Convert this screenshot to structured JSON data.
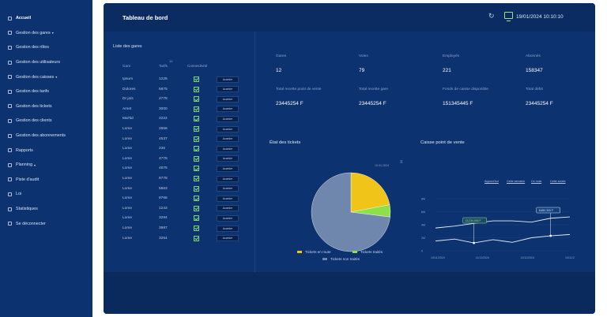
{
  "sidebar": {
    "items": [
      {
        "label": "Accueil",
        "caret": ""
      },
      {
        "label": "Gestion des gares",
        "caret": "▾"
      },
      {
        "label": "Gestion des rôles",
        "caret": ""
      },
      {
        "label": "Gestion des utilisateurs",
        "caret": ""
      },
      {
        "label": "Gestion des caisses",
        "caret": "▾"
      },
      {
        "label": "Gestion des tarifs",
        "caret": ""
      },
      {
        "label": "Gestion des tickets",
        "caret": ""
      },
      {
        "label": "Gestion des clients",
        "caret": ""
      },
      {
        "label": "Gestion des abonnements",
        "caret": ""
      },
      {
        "label": "Rapports",
        "caret": ""
      },
      {
        "label": "Planning",
        "caret": "▾"
      },
      {
        "label": "Piste d'audit",
        "caret": ""
      },
      {
        "label": "Loi",
        "caret": ""
      },
      {
        "label": "Statistiques",
        "caret": ""
      },
      {
        "label": "Se déconnecter",
        "caret": ""
      }
    ]
  },
  "header": {
    "title": "Tableau de bord",
    "datetime": "19/01/2024 10:10:10",
    "refresh_icon": "↻"
  },
  "gares": {
    "title": "Liste des gares",
    "columns": [
      "Gare",
      "Tarifs",
      "Connectivité"
    ],
    "notif": "10",
    "button_label": "Accéder",
    "rows": [
      {
        "name": "Ipsum",
        "tarif": "1225"
      },
      {
        "name": "Dolores",
        "tarif": "5875"
      },
      {
        "name": "Dr jois",
        "tarif": "2778"
      },
      {
        "name": "Amet",
        "tarif": "3000"
      },
      {
        "name": "Mal'tid",
        "tarif": "2222"
      },
      {
        "name": "Lome",
        "tarif": "2656"
      },
      {
        "name": "Lome",
        "tarif": "4537"
      },
      {
        "name": "Lome",
        "tarif": "235"
      },
      {
        "name": "Lome",
        "tarif": "4776"
      },
      {
        "name": "Lome",
        "tarif": "4875"
      },
      {
        "name": "Lome",
        "tarif": "8778"
      },
      {
        "name": "Lome",
        "tarif": "5663"
      },
      {
        "name": "Lome",
        "tarif": "8766"
      },
      {
        "name": "Lome",
        "tarif": "1243"
      },
      {
        "name": "Lome",
        "tarif": "3294"
      },
      {
        "name": "Lome",
        "tarif": "3987"
      },
      {
        "name": "Lome",
        "tarif": "3254"
      }
    ]
  },
  "stats": {
    "row1": [
      {
        "label": "Gares",
        "value": "12"
      },
      {
        "label": "Voies",
        "value": "79"
      },
      {
        "label": "Employés",
        "value": "221"
      },
      {
        "label": "Abonnés",
        "value": "158347"
      }
    ],
    "row2": [
      {
        "label": "Total recette point de vente",
        "value": "23445254 F"
      },
      {
        "label": "Total recette gare",
        "value": "23445254 F"
      },
      {
        "label": "Fonds de caisse disponible",
        "value": "151345445 F"
      },
      {
        "label": "Total débit",
        "value": "23445254 F"
      }
    ]
  },
  "tickets_chart": {
    "title": "État des tickets",
    "note": "10.01.2024",
    "menu_icon": "≡",
    "legend": [
      {
        "label": "Tickets en route",
        "color": "#f0c419"
      },
      {
        "label": "Tickets traités",
        "color": "#8ee04a"
      },
      {
        "label": "Tickets non traités",
        "color": "#6f86ad"
      }
    ]
  },
  "caisse_chart": {
    "title": "Caisse point de vente",
    "ranges": [
      "Aujourd'hui",
      "Cette semaine",
      "Ce mois",
      "Cette année"
    ],
    "tooltip_left": "13,234,546 F",
    "tooltip_right": "8,652,333 F",
    "y_ticks": [
      "8M",
      "6M",
      "4M",
      "2M",
      "0"
    ],
    "x_ticks": [
      "10/11/2024",
      "11/11/2024",
      "12/11/2024",
      "13/11/2024"
    ]
  },
  "chart_data": [
    {
      "type": "pie",
      "title": "État des tickets",
      "categories": [
        "Tickets en route",
        "Tickets traités",
        "Tickets non traités"
      ],
      "values": [
        22,
        5,
        73
      ],
      "colors": [
        "#f0c419",
        "#8ee04a",
        "#6f86ad"
      ]
    },
    {
      "type": "line",
      "title": "Caisse point de vente",
      "x": [
        "10/11/2024",
        "10/11/2024",
        "11/11/2024",
        "11/11/2024",
        "12/11/2024",
        "12/11/2024",
        "13/11/2024",
        "13/11/2024"
      ],
      "ylim": [
        0,
        8
      ],
      "series": [
        {
          "name": "",
          "values": [
            3.5,
            3.8,
            4.2,
            4.6,
            4.6,
            4.4,
            5.0,
            5.2
          ]
        },
        {
          "name": "",
          "values": [
            1.5,
            1.8,
            1.2,
            1.7,
            1.3,
            2.0,
            2.3,
            2.5
          ]
        }
      ]
    }
  ]
}
